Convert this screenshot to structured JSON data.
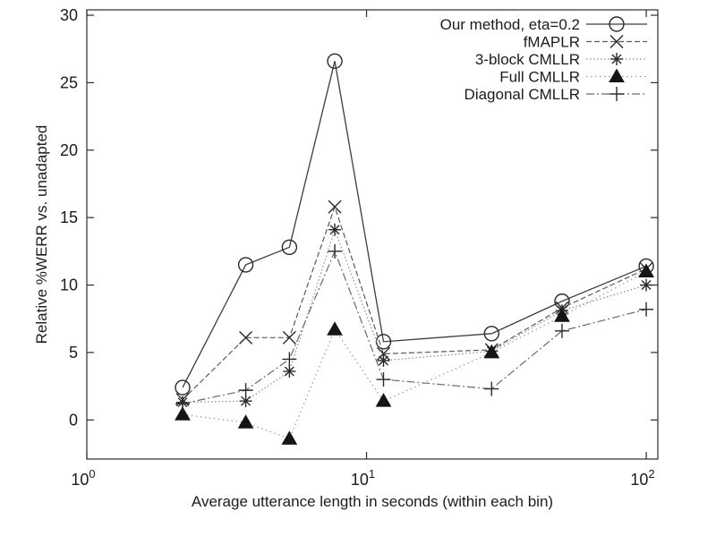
{
  "figure": {
    "background": "#ffffff",
    "foreground": "#1c1c1c",
    "title": ""
  },
  "chart_data": {
    "type": "line",
    "title": "",
    "xlabel": "Average utterance length in seconds (within each bin)",
    "ylabel": "Relative %WERR vs. unadapted",
    "x_scale": "log",
    "xlim": [
      1,
      110
    ],
    "ylim": [
      -2.9,
      30.4
    ],
    "grid": false,
    "legend_position": "top-right-inside",
    "x_ticks": [
      {
        "value": 1,
        "base": "10",
        "exp": "0"
      },
      {
        "value": 10,
        "base": "10",
        "exp": "1"
      },
      {
        "value": 100,
        "base": "10",
        "exp": "2"
      }
    ],
    "y_ticks": [
      0,
      5,
      10,
      15,
      20,
      25,
      30
    ],
    "x": [
      2.2,
      3.7,
      5.3,
      7.7,
      11.5,
      28,
      50,
      100
    ],
    "series": [
      {
        "name": "Our method, eta=0.2",
        "marker": "circle",
        "line_style": "solid",
        "color": "#3c3c3c",
        "values": [
          2.4,
          11.5,
          12.8,
          26.6,
          5.8,
          6.4,
          8.8,
          11.4
        ]
      },
      {
        "name": "fMAPLR",
        "marker": "x",
        "line_style": "dashed",
        "color": "#5a5a5a",
        "values": [
          1.5,
          6.1,
          6.1,
          15.8,
          4.9,
          5.2,
          8.3,
          11.2
        ]
      },
      {
        "name": "3-block CMLLR",
        "marker": "asterisk",
        "line_style": "dotted",
        "color": "#8c8c8c",
        "values": [
          1.3,
          1.4,
          3.6,
          14.1,
          4.4,
          5.1,
          8.1,
          10.0
        ]
      },
      {
        "name": "Full CMLLR",
        "marker": "triangle-filled",
        "line_style": "fine-dotted",
        "color": "#9a9a9a",
        "values": [
          0.4,
          -0.2,
          -1.4,
          6.7,
          1.4,
          5.0,
          7.7,
          11.0
        ]
      },
      {
        "name": "Diagonal CMLLR",
        "marker": "plus",
        "line_style": "dash-dot",
        "color": "#6a6a6a",
        "values": [
          1.2,
          2.2,
          4.5,
          12.5,
          3.0,
          2.3,
          6.6,
          8.2
        ]
      }
    ]
  }
}
